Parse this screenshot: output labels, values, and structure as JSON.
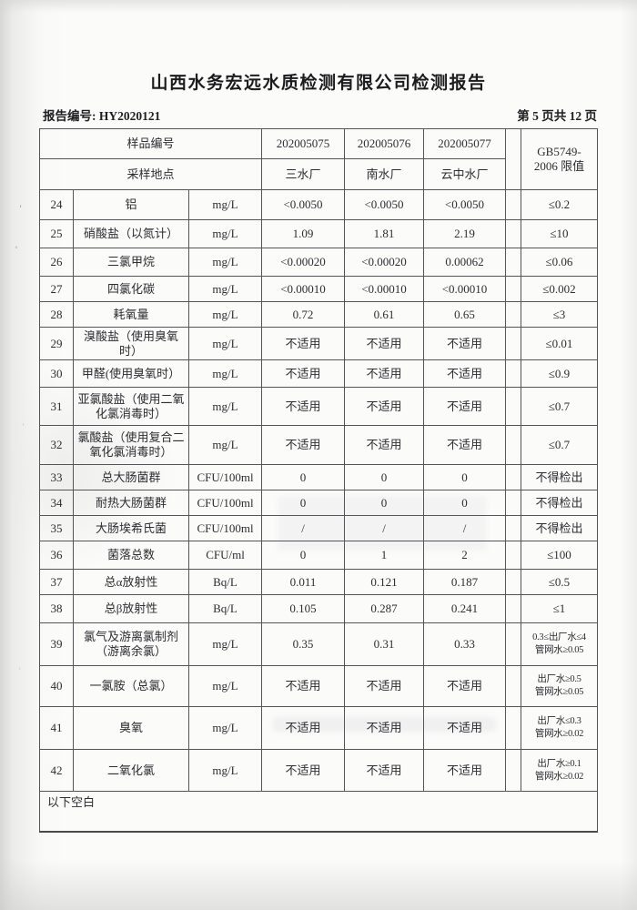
{
  "page": {
    "title": "山西水务宏远水质检测有限公司检测报告",
    "report_no_label": "报告编号:",
    "report_no": "HY2020121",
    "page_info": "第 5 页共 12 页"
  },
  "table": {
    "header": {
      "sample_no_label": "样品编号",
      "sample_location_label": "采样地点",
      "sample_nos": [
        "202005075",
        "202005076",
        "202005077"
      ],
      "locations": [
        "三水厂",
        "南水厂",
        "云中水厂"
      ],
      "limit_header": "GB5749-\n2006 限值"
    },
    "rows": [
      {
        "no": "24",
        "name": "铝",
        "unit": "mg/L",
        "values": [
          "<0.0050",
          "<0.0050",
          "<0.0050"
        ],
        "limit": "≤0.2"
      },
      {
        "no": "25",
        "name": "硝酸盐（以氮计）",
        "unit": "mg/L",
        "values": [
          "1.09",
          "1.81",
          "2.19"
        ],
        "limit": "≤10"
      },
      {
        "no": "26",
        "name": "三氯甲烷",
        "unit": "mg/L",
        "values": [
          "<0.00020",
          "<0.00020",
          "0.00062"
        ],
        "limit": "≤0.06"
      },
      {
        "no": "27",
        "name": "四氯化碳",
        "unit": "mg/L",
        "values": [
          "<0.00010",
          "<0.00010",
          "<0.00010"
        ],
        "limit": "≤0.002"
      },
      {
        "no": "28",
        "name": "耗氧量",
        "unit": "mg/L",
        "values": [
          "0.72",
          "0.61",
          "0.65"
        ],
        "limit": "≤3"
      },
      {
        "no": "29",
        "name": "溴酸盐（使用臭氧时）",
        "unit": "mg/L",
        "values": [
          "不适用",
          "不适用",
          "不适用"
        ],
        "limit": "≤0.01"
      },
      {
        "no": "30",
        "name": "甲醛(使用臭氧时）",
        "unit": "mg/L",
        "values": [
          "不适用",
          "不适用",
          "不适用"
        ],
        "limit": "≤0.9"
      },
      {
        "no": "31",
        "name": "亚氯酸盐（使用二氧化氯消毒时）",
        "unit": "mg/L",
        "values": [
          "不适用",
          "不适用",
          "不适用"
        ],
        "limit": "≤0.7"
      },
      {
        "no": "32",
        "name": "氯酸盐（使用复合二氧化氯消毒时）",
        "unit": "mg/L",
        "values": [
          "不适用",
          "不适用",
          "不适用"
        ],
        "limit": "≤0.7"
      },
      {
        "no": "33",
        "name": "总大肠菌群",
        "unit": "CFU/100ml",
        "values": [
          "0",
          "0",
          "0"
        ],
        "limit": "不得检出"
      },
      {
        "no": "34",
        "name": "耐热大肠菌群",
        "unit": "CFU/100ml",
        "values": [
          "0",
          "0",
          "0"
        ],
        "limit": "不得检出"
      },
      {
        "no": "35",
        "name": "大肠埃希氏菌",
        "unit": "CFU/100ml",
        "values": [
          "/",
          "/",
          "/"
        ],
        "limit": "不得检出"
      },
      {
        "no": "36",
        "name": "菌落总数",
        "unit": "CFU/ml",
        "values": [
          "0",
          "1",
          "2"
        ],
        "limit": "≤100"
      },
      {
        "no": "37",
        "name": "总α放射性",
        "unit": "Bq/L",
        "values": [
          "0.011",
          "0.121",
          "0.187"
        ],
        "limit": "≤0.5"
      },
      {
        "no": "38",
        "name": "总β放射性",
        "unit": "Bq/L",
        "values": [
          "0.105",
          "0.287",
          "0.241"
        ],
        "limit": "≤1"
      },
      {
        "no": "39",
        "name": "氯气及游离氯制剂（游离余氯）",
        "unit": "mg/L",
        "values": [
          "0.35",
          "0.31",
          "0.33"
        ],
        "limit": "0.3≤出厂水≤4\n管网水≥0.05"
      },
      {
        "no": "40",
        "name": "一氯胺（总氯）",
        "unit": "mg/L",
        "values": [
          "不适用",
          "不适用",
          "不适用"
        ],
        "limit": "出厂水≥0.5\n管网水≥0.05"
      },
      {
        "no": "41",
        "name": "臭氧",
        "unit": "mg/L",
        "values": [
          "不适用",
          "不适用",
          "不适用"
        ],
        "limit": "出厂水≤0.3\n管网水≥0.02"
      },
      {
        "no": "42",
        "name": "二氧化氯",
        "unit": "mg/L",
        "values": [
          "不适用",
          "不适用",
          "不适用"
        ],
        "limit": "出厂水≥0.1\n管网水≥0.02"
      }
    ],
    "footer_note": "以下空白"
  }
}
